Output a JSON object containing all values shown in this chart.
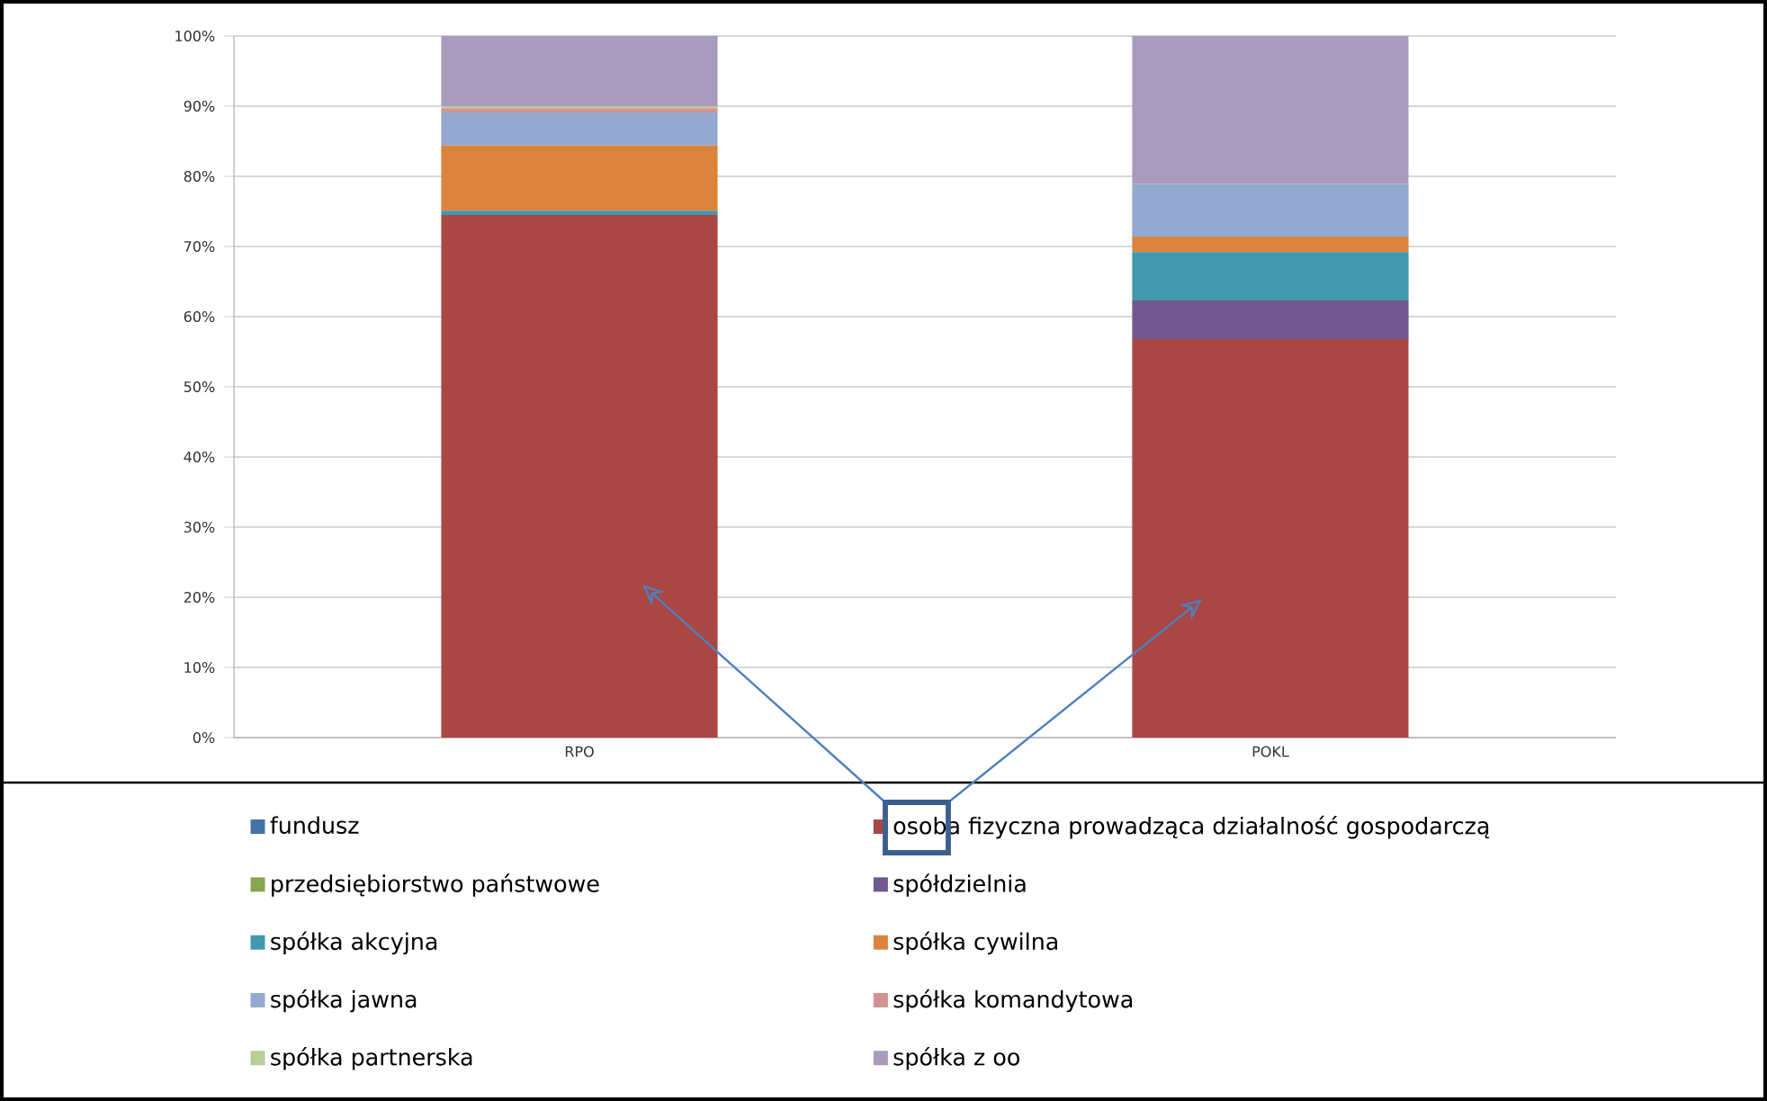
{
  "chart_data": {
    "type": "bar",
    "stacked": true,
    "categories": [
      "RPO",
      "POKL"
    ],
    "series": [
      {
        "name": "fundusz",
        "color": "#4572a7",
        "values": [
          0,
          0
        ]
      },
      {
        "name": "osoba fizyczna prowadząca działalność gospodarczą",
        "color": "#aa4643",
        "values": [
          74.5,
          56.8
        ]
      },
      {
        "name": "przedsiębiorstwo państwowe",
        "color": "#89a54e",
        "values": [
          0,
          0
        ]
      },
      {
        "name": "spółdzielnia",
        "color": "#71588f",
        "values": [
          0,
          5.5
        ]
      },
      {
        "name": "spółka akcyjna",
        "color": "#4198af",
        "values": [
          0.6,
          6.9
        ]
      },
      {
        "name": "spółka cywilna",
        "color": "#db843d",
        "values": [
          9.3,
          2.2
        ]
      },
      {
        "name": "spółka jawna",
        "color": "#93a9cf",
        "values": [
          4.7,
          7.5
        ]
      },
      {
        "name": "spółka komandytowa",
        "color": "#d19392",
        "values": [
          0.6,
          0
        ]
      },
      {
        "name": "spółka partnerska",
        "color": "#b9cd96",
        "values": [
          0.3,
          0
        ]
      },
      {
        "name": "spółka z oo",
        "color": "#a99bbd",
        "values": [
          10.0,
          21.1
        ]
      }
    ],
    "ylim": [
      0,
      100
    ],
    "yticks": [
      {
        "value": 0,
        "label": "0%"
      },
      {
        "value": 10,
        "label": "10%"
      },
      {
        "value": 20,
        "label": "20%"
      },
      {
        "value": 30,
        "label": "30%"
      },
      {
        "value": 40,
        "label": "40%"
      },
      {
        "value": 50,
        "label": "50%"
      },
      {
        "value": 60,
        "label": "60%"
      },
      {
        "value": 70,
        "label": "70%"
      },
      {
        "value": 80,
        "label": "80%"
      },
      {
        "value": 90,
        "label": "90%"
      },
      {
        "value": 100,
        "label": "100%"
      }
    ],
    "grid": "y",
    "legend": "bottom"
  }
}
